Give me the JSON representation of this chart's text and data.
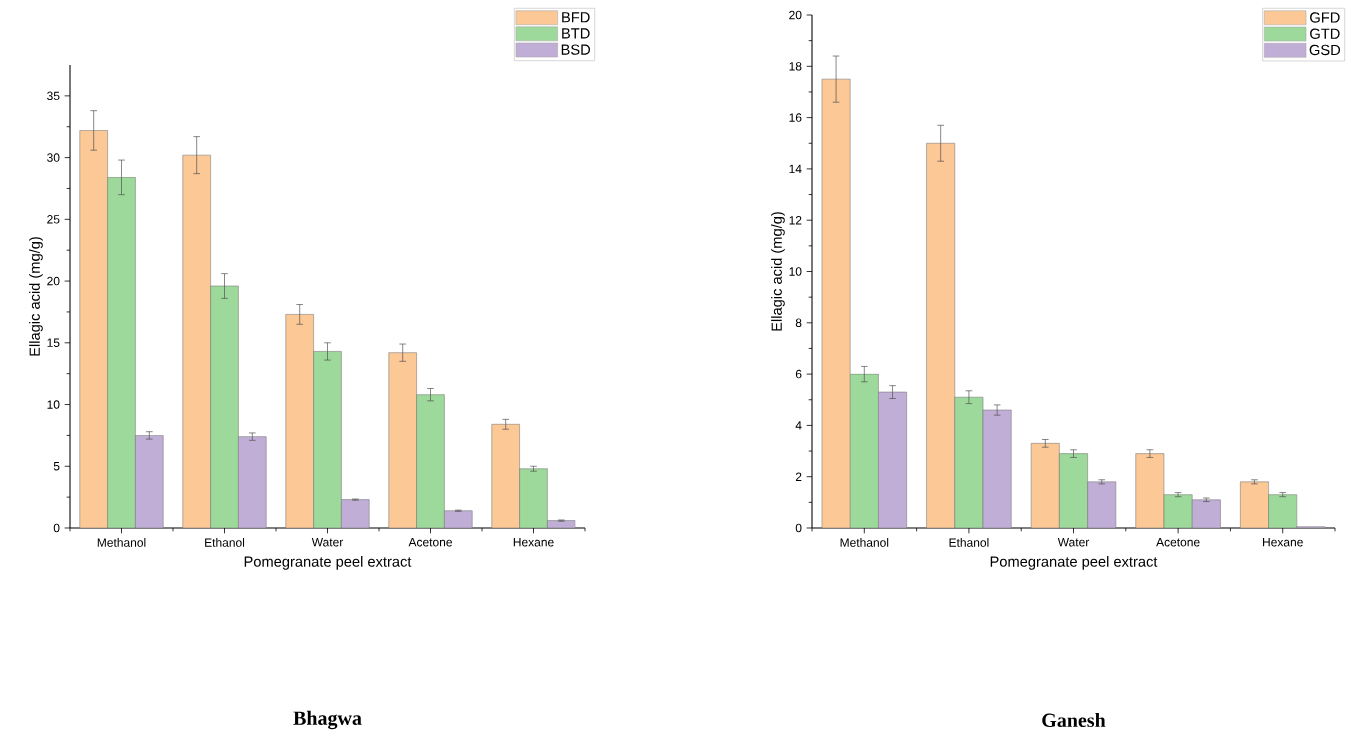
{
  "chart_data": [
    {
      "type": "bar",
      "title": "Bhagwa",
      "xlabel": "Pomegranate peel extract",
      "ylabel": "Ellagic acid (mg/g)",
      "categories": [
        "Methanol",
        "Ethanol",
        "Water",
        "Acetone",
        "Hexane"
      ],
      "series": [
        {
          "name": "BFD",
          "color": "#fbc896",
          "values": [
            32.2,
            30.2,
            17.3,
            14.2,
            8.4
          ],
          "errors": [
            1.6,
            1.5,
            0.8,
            0.7,
            0.4
          ]
        },
        {
          "name": "BTD",
          "color": "#9dd99a",
          "values": [
            28.4,
            19.6,
            14.3,
            10.8,
            4.8
          ],
          "errors": [
            1.4,
            1.0,
            0.7,
            0.5,
            0.2
          ]
        },
        {
          "name": "BSD",
          "color": "#c0aed6",
          "values": [
            7.5,
            7.4,
            2.3,
            1.4,
            0.6
          ],
          "errors": [
            0.3,
            0.3,
            0.05,
            0.05,
            0.05
          ]
        }
      ],
      "ylim": [
        0,
        37.5
      ],
      "yticks": [
        0,
        5,
        10,
        15,
        20,
        25,
        30,
        35
      ],
      "grid": false,
      "legend": "top right"
    },
    {
      "type": "bar",
      "title": "Ganesh",
      "xlabel": "Pomegranate peel extract",
      "ylabel": "Ellagic acid (mg/g)",
      "categories": [
        "Methanol",
        "Ethanol",
        "Water",
        "Acetone",
        "Hexane"
      ],
      "series": [
        {
          "name": "GFD",
          "color": "#fbc896",
          "values": [
            17.5,
            15.0,
            3.3,
            2.9,
            1.8
          ],
          "errors": [
            0.9,
            0.7,
            0.15,
            0.15,
            0.08
          ]
        },
        {
          "name": "GTD",
          "color": "#9dd99a",
          "values": [
            6.0,
            5.1,
            2.9,
            1.3,
            1.3
          ],
          "errors": [
            0.3,
            0.25,
            0.15,
            0.08,
            0.08
          ]
        },
        {
          "name": "GSD",
          "color": "#c0aed6",
          "values": [
            5.3,
            4.6,
            1.8,
            1.1,
            0.05
          ],
          "errors": [
            0.25,
            0.2,
            0.08,
            0.07,
            null
          ]
        }
      ],
      "ylim": [
        0,
        20
      ],
      "yticks": [
        0,
        2,
        4,
        6,
        8,
        10,
        12,
        14,
        16,
        18,
        20
      ],
      "grid": false,
      "legend": "top right"
    }
  ]
}
